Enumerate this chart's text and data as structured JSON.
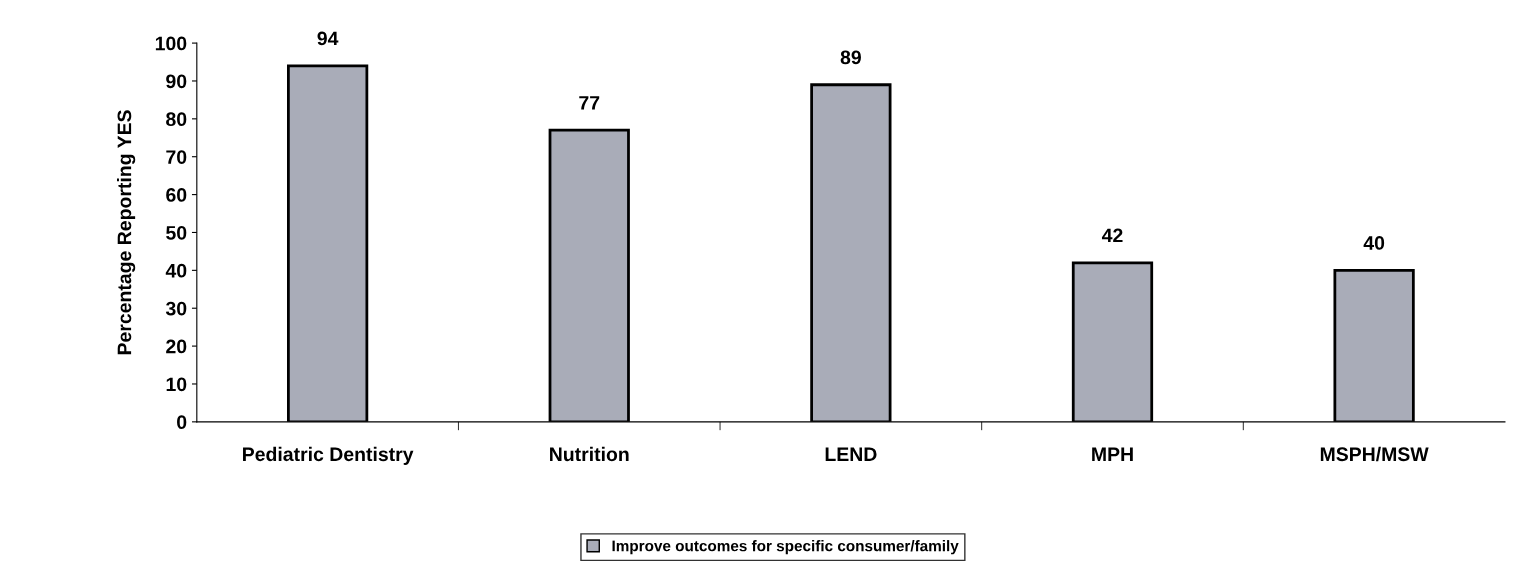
{
  "chart_data": {
    "type": "bar",
    "ylabel": "Percentage Reporting YES",
    "categories": [
      "Pediatric Dentistry",
      "Nutrition",
      "LEND",
      "MPH",
      "MSPH/MSW"
    ],
    "series": [
      {
        "name": "Improve outcomes for specific consumer/family",
        "color": "#a9acb8",
        "values": [
          94,
          77,
          89,
          42,
          40
        ]
      }
    ],
    "ylim": [
      0,
      100
    ],
    "yticks": [
      0,
      10,
      20,
      30,
      40,
      50,
      60,
      70,
      80,
      90,
      100
    ],
    "data_labels": true,
    "legend": "bottom",
    "grid": false
  }
}
